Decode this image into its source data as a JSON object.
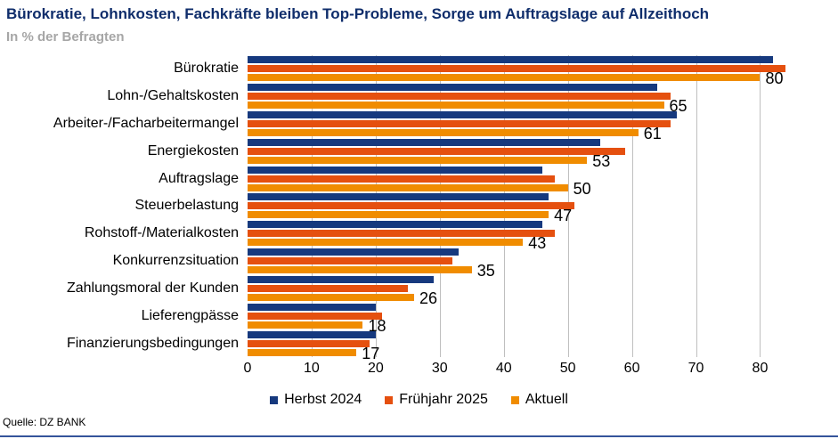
{
  "header": {
    "title": "Bürokratie, Lohnkosten, Fachkräfte bleiben Top-Probleme, Sorge um Auftragslage auf Allzeithoch",
    "subtitle": "In % der Befragten"
  },
  "source": "Quelle: DZ BANK",
  "colors": {
    "title": "#0F2D6B",
    "subtitle": "#A6A6A6",
    "gridline": "#BFBFBF",
    "bottom_rule": "#35549B"
  },
  "chart_data": {
    "type": "bar",
    "orientation": "horizontal",
    "title": "Bürokratie, Lohnkosten, Fachkräfte bleiben Top-Probleme, Sorge um Auftragslage auf Allzeithoch",
    "subtitle": "In % der Befragten",
    "categories": [
      "Bürokratie",
      "Lohn-/Gehaltskosten",
      "Arbeiter-/Facharbeitermangel",
      "Energiekosten",
      "Auftragslage",
      "Steuerbelastung",
      "Rohstoff-/Materialkosten",
      "Konkurrenzsituation",
      "Zahlungsmoral der Kunden",
      "Lieferengpässe",
      "Finanzierungsbedingungen"
    ],
    "series": [
      {
        "name": "Herbst 2024",
        "color": "#16397E",
        "data_labels": false,
        "values": [
          82,
          64,
          67,
          55,
          46,
          47,
          46,
          33,
          29,
          20,
          20
        ]
      },
      {
        "name": "Frühjahr 2025",
        "color": "#E5500F",
        "data_labels": false,
        "values": [
          84,
          66,
          66,
          59,
          48,
          51,
          48,
          32,
          25,
          21,
          19
        ]
      },
      {
        "name": "Aktuell",
        "color": "#F08C00",
        "data_labels": true,
        "values": [
          80,
          65,
          61,
          53,
          50,
          47,
          43,
          35,
          26,
          18,
          17
        ]
      }
    ],
    "x_ticks": [
      0,
      10,
      20,
      30,
      40,
      50,
      60,
      70,
      80
    ],
    "xlim": [
      0,
      88
    ],
    "grid": true,
    "legend_position": "bottom"
  }
}
